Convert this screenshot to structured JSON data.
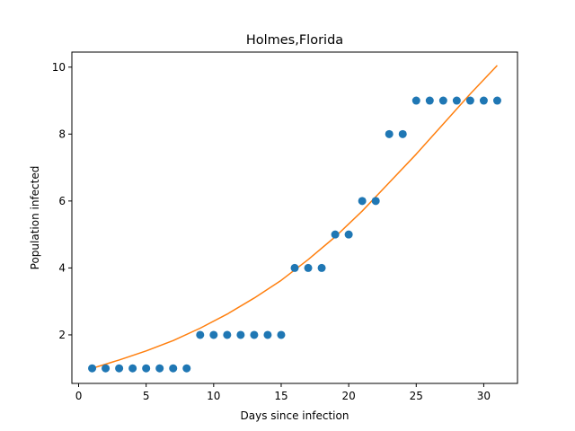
{
  "chart_data": {
    "type": "scatter",
    "title": "Holmes,Florida",
    "xlabel": "Days since infection",
    "ylabel": "Population infected",
    "xlim": [
      -0.5,
      32.5
    ],
    "ylim": [
      0.55,
      10.45
    ],
    "xticks": [
      0,
      5,
      10,
      15,
      20,
      25,
      30
    ],
    "yticks": [
      2,
      4,
      6,
      8,
      10
    ],
    "grid": false,
    "series": [
      {
        "kind": "points",
        "color": "#1f77b4",
        "x": [
          1,
          2,
          3,
          4,
          5,
          6,
          7,
          8,
          9,
          10,
          11,
          12,
          13,
          14,
          15,
          16,
          17,
          18,
          19,
          20,
          21,
          22,
          23,
          24,
          25,
          26,
          27,
          28,
          29,
          30,
          31
        ],
        "y": [
          1,
          1,
          1,
          1,
          1,
          1,
          1,
          1,
          2,
          2,
          2,
          2,
          2,
          2,
          2,
          4,
          4,
          4,
          5,
          5,
          6,
          6,
          8,
          8,
          9,
          9,
          9,
          9,
          9,
          9,
          9
        ]
      },
      {
        "kind": "line",
        "color": "#ff7f0e",
        "x": [
          1,
          3,
          5,
          7,
          9,
          11,
          13,
          15,
          17,
          19,
          21,
          23,
          25,
          27,
          29,
          31
        ],
        "y": [
          1.0,
          1.25,
          1.52,
          1.83,
          2.2,
          2.62,
          3.1,
          3.63,
          4.25,
          4.93,
          5.7,
          6.55,
          7.4,
          8.3,
          9.2,
          10.05
        ]
      }
    ]
  }
}
